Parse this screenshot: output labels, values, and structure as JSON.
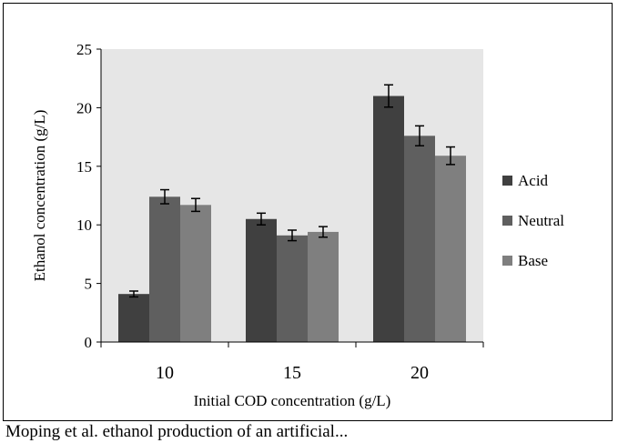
{
  "chart_data": {
    "type": "bar",
    "xlabel": "Initial COD concentration  (g/L)",
    "ylabel": "Ethanol concentration  (g/L)",
    "categories": [
      "10",
      "15",
      "20"
    ],
    "ylim": [
      0,
      25
    ],
    "yticks": [
      "0",
      "5",
      "10",
      "15",
      "20",
      "25"
    ],
    "grid": false,
    "legend_position": "right",
    "series": [
      {
        "name": "Acid",
        "color": "#404040",
        "values": [
          4.1,
          10.5,
          21.0
        ],
        "errors": [
          0.25,
          0.5,
          0.95
        ]
      },
      {
        "name": "Neutral",
        "color": "#5f5f5f",
        "values": [
          12.4,
          9.1,
          17.6
        ],
        "errors": [
          0.6,
          0.45,
          0.85
        ]
      },
      {
        "name": "Base",
        "color": "#7f7f7f",
        "values": [
          11.7,
          9.4,
          15.9
        ],
        "errors": [
          0.55,
          0.45,
          0.75
        ]
      }
    ]
  },
  "caption_fragment": "Moping et al. ethanol production of an artificial..."
}
